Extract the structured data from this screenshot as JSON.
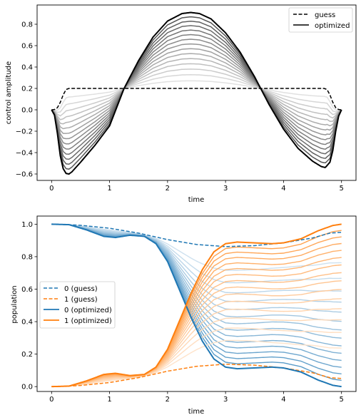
{
  "chart_data": [
    {
      "type": "line",
      "xlabel": "time",
      "ylabel": "control amplitude",
      "xlim": [
        -0.25,
        5.25
      ],
      "ylim": [
        -0.66,
        0.98
      ],
      "xticks": [
        0,
        1,
        2,
        3,
        4,
        5
      ],
      "yticks": [
        -0.6,
        -0.4,
        -0.2,
        0.0,
        0.2,
        0.4,
        0.6,
        0.8
      ],
      "ytick_labels": [
        "−0.6",
        "−0.4",
        "−0.2",
        "0.0",
        "0.2",
        "0.4",
        "0.6",
        "0.8"
      ],
      "legend": {
        "placement": "upper right",
        "entries": [
          "guess",
          "optimized"
        ]
      },
      "grid": false,
      "series": [
        {
          "name": "guess",
          "color": "#000000",
          "style": "dashed",
          "points": [
            [
              0,
              0
            ],
            [
              0.05,
              0.003
            ],
            [
              0.1,
              0.02
            ],
            [
              0.15,
              0.07
            ],
            [
              0.2,
              0.14
            ],
            [
              0.25,
              0.19
            ],
            [
              0.3,
              0.2
            ],
            [
              4.7,
              0.2
            ],
            [
              4.75,
              0.19
            ],
            [
              4.8,
              0.14
            ],
            [
              4.85,
              0.07
            ],
            [
              4.9,
              0.02
            ],
            [
              4.95,
              0.003
            ],
            [
              5,
              0
            ]
          ]
        },
        {
          "name": "optimized",
          "color": "#000000",
          "style": "solid",
          "points": [
            [
              0,
              0
            ],
            [
              0.05,
              -0.05
            ],
            [
              0.1,
              -0.22
            ],
            [
              0.15,
              -0.43
            ],
            [
              0.2,
              -0.55
            ],
            [
              0.25,
              -0.595
            ],
            [
              0.3,
              -0.6
            ],
            [
              0.35,
              -0.58
            ],
            [
              0.5,
              -0.49
            ],
            [
              0.75,
              -0.33
            ],
            [
              1,
              -0.15
            ],
            [
              1.25,
              0.2
            ],
            [
              1.5,
              0.46
            ],
            [
              1.75,
              0.68
            ],
            [
              2,
              0.83
            ],
            [
              2.25,
              0.9
            ],
            [
              2.4,
              0.91
            ],
            [
              2.55,
              0.9
            ],
            [
              2.75,
              0.85
            ],
            [
              3,
              0.72
            ],
            [
              3.25,
              0.54
            ],
            [
              3.5,
              0.31
            ],
            [
              3.75,
              0.05
            ],
            [
              4,
              -0.18
            ],
            [
              4.25,
              -0.36
            ],
            [
              4.5,
              -0.48
            ],
            [
              4.65,
              -0.53
            ],
            [
              4.72,
              -0.54
            ],
            [
              4.8,
              -0.49
            ],
            [
              4.85,
              -0.38
            ],
            [
              4.9,
              -0.2
            ],
            [
              4.95,
              -0.06
            ],
            [
              5,
              0
            ]
          ]
        }
      ],
      "iterations": {
        "count": 14,
        "colors": "grayscale, light to dark"
      }
    },
    {
      "type": "line",
      "xlabel": "time",
      "ylabel": "population",
      "xlim": [
        -0.25,
        5.25
      ],
      "ylim": [
        -0.03,
        1.05
      ],
      "xticks": [
        0,
        1,
        2,
        3,
        4,
        5
      ],
      "yticks": [
        0.0,
        0.2,
        0.4,
        0.6,
        0.8,
        1.0
      ],
      "ytick_labels": [
        "0.0",
        "0.2",
        "0.4",
        "0.6",
        "0.8",
        "1.0"
      ],
      "legend": {
        "placement": "center left",
        "entries": [
          "0 (guess)",
          "1 (guess)",
          "0 (optimized)",
          "1 (optimized)"
        ]
      },
      "grid": false,
      "series": [
        {
          "name": "0 (guess)",
          "color": "#1f77b4",
          "style": "dashed",
          "points": [
            [
              0,
              1
            ],
            [
              0.3,
              0.997
            ],
            [
              0.5,
              0.993
            ],
            [
              1,
              0.975
            ],
            [
              1.5,
              0.945
            ],
            [
              2,
              0.905
            ],
            [
              2.5,
              0.875
            ],
            [
              3,
              0.862
            ],
            [
              3.5,
              0.868
            ],
            [
              4,
              0.885
            ],
            [
              4.5,
              0.915
            ],
            [
              4.8,
              0.945
            ],
            [
              5,
              0.95
            ]
          ]
        },
        {
          "name": "1 (guess)",
          "color": "#ff7f0e",
          "style": "dashed",
          "points": [
            [
              0,
              0
            ],
            [
              0.3,
              0.003
            ],
            [
              0.5,
              0.007
            ],
            [
              1,
              0.025
            ],
            [
              1.5,
              0.055
            ],
            [
              2,
              0.095
            ],
            [
              2.5,
              0.125
            ],
            [
              3,
              0.138
            ],
            [
              3.5,
              0.132
            ],
            [
              4,
              0.115
            ],
            [
              4.5,
              0.085
            ],
            [
              4.8,
              0.055
            ],
            [
              5,
              0.05
            ]
          ]
        },
        {
          "name": "0 (optimized)",
          "color": "#1f77b4",
          "style": "solid",
          "points": [
            [
              0,
              1
            ],
            [
              0.3,
              0.997
            ],
            [
              0.6,
              0.965
            ],
            [
              0.9,
              0.925
            ],
            [
              1.1,
              0.918
            ],
            [
              1.35,
              0.932
            ],
            [
              1.6,
              0.925
            ],
            [
              1.8,
              0.88
            ],
            [
              2,
              0.77
            ],
            [
              2.2,
              0.6
            ],
            [
              2.4,
              0.43
            ],
            [
              2.6,
              0.28
            ],
            [
              2.8,
              0.17
            ],
            [
              3,
              0.12
            ],
            [
              3.2,
              0.11
            ],
            [
              3.5,
              0.115
            ],
            [
              3.8,
              0.12
            ],
            [
              4,
              0.115
            ],
            [
              4.3,
              0.09
            ],
            [
              4.6,
              0.04
            ],
            [
              4.85,
              0.008
            ],
            [
              5,
              0
            ]
          ]
        },
        {
          "name": "1 (optimized)",
          "color": "#ff7f0e",
          "style": "solid",
          "points": [
            [
              0,
              0
            ],
            [
              0.3,
              0.003
            ],
            [
              0.6,
              0.035
            ],
            [
              0.9,
              0.075
            ],
            [
              1.1,
              0.082
            ],
            [
              1.35,
              0.068
            ],
            [
              1.6,
              0.075
            ],
            [
              1.8,
              0.12
            ],
            [
              2,
              0.23
            ],
            [
              2.2,
              0.4
            ],
            [
              2.4,
              0.57
            ],
            [
              2.6,
              0.72
            ],
            [
              2.8,
              0.83
            ],
            [
              3,
              0.88
            ],
            [
              3.2,
              0.89
            ],
            [
              3.5,
              0.885
            ],
            [
              3.8,
              0.88
            ],
            [
              4,
              0.885
            ],
            [
              4.3,
              0.91
            ],
            [
              4.6,
              0.96
            ],
            [
              4.85,
              0.992
            ],
            [
              5,
              1
            ]
          ]
        }
      ],
      "iterations": {
        "count": 14,
        "colors": "light blue / light orange, light to dark"
      }
    }
  ]
}
